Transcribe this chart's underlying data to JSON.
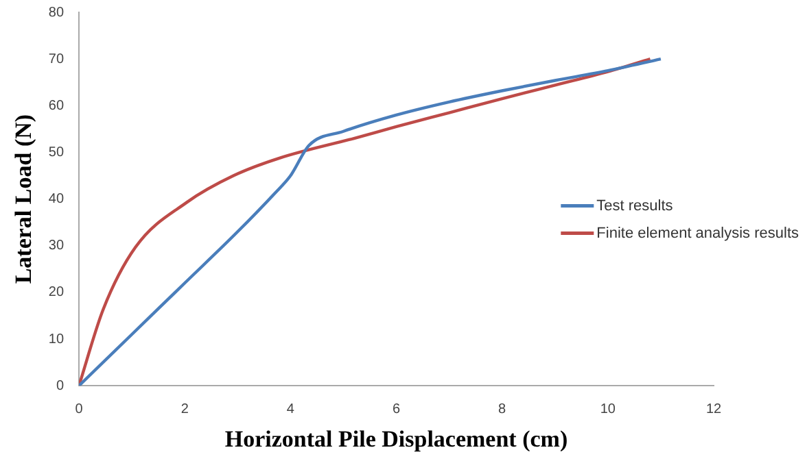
{
  "chart_data": {
    "type": "line",
    "xlabel": "Horizontal Pile Displacement (cm)",
    "ylabel": "Lateral Load (N)",
    "xlim": [
      0,
      12
    ],
    "xticks": [
      0,
      2,
      4,
      6,
      8,
      10,
      12
    ],
    "ylim": [
      0,
      80
    ],
    "yticks": [
      0,
      10,
      20,
      30,
      40,
      50,
      60,
      70,
      80
    ],
    "grid": false,
    "legend": "right",
    "marker": "none",
    "series": [
      {
        "name": "Test results",
        "color": "#4a7ebb",
        "x": [
          0,
          1,
          2,
          3,
          3.7,
          4,
          4.35,
          5,
          6,
          7,
          8,
          9,
          10,
          11
        ],
        "values": [
          0,
          11,
          22,
          33,
          41.2,
          45,
          51.5,
          54.5,
          58,
          60.8,
          63.2,
          65.4,
          67.5,
          70
        ]
      },
      {
        "name": "Finite element analysis results",
        "color": "#be4b48",
        "x": [
          0,
          0.46,
          1.07,
          2.04,
          2.92,
          3.8,
          5.2,
          6,
          7,
          8,
          9,
          10,
          10.8
        ],
        "values": [
          0,
          16.4,
          29.7,
          39.3,
          45,
          48.8,
          53,
          55.5,
          58.5,
          61.5,
          64.4,
          67.3,
          70
        ]
      }
    ]
  }
}
